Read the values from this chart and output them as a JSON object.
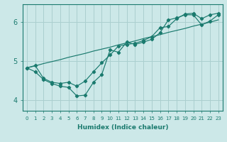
{
  "xlabel": "Humidex (Indice chaleur)",
  "bg_color": "#cce8e8",
  "line_color": "#1a7a6e",
  "grid_color": "#aacfcf",
  "xlim": [
    -0.5,
    23.5
  ],
  "ylim": [
    3.72,
    6.45
  ],
  "yticks": [
    4,
    5,
    6
  ],
  "xtick_labels": [
    "0",
    "1",
    "2",
    "3",
    "4",
    "5",
    "6",
    "7",
    "8",
    "9",
    "10",
    "11",
    "12",
    "13",
    "14",
    "15",
    "16",
    "17",
    "18",
    "19",
    "20",
    "21",
    "22",
    "23"
  ],
  "series_jagged": [
    4.82,
    4.72,
    4.52,
    4.42,
    4.35,
    4.32,
    4.1,
    4.12,
    4.45,
    4.65,
    5.28,
    5.22,
    5.48,
    5.42,
    5.48,
    5.55,
    5.72,
    6.05,
    6.1,
    6.18,
    6.18,
    5.92,
    6.02,
    6.18
  ],
  "series_smooth": [
    4.82,
    4.88,
    4.55,
    4.45,
    4.42,
    4.45,
    4.35,
    4.48,
    4.72,
    4.95,
    5.15,
    5.38,
    5.42,
    5.45,
    5.52,
    5.62,
    5.85,
    5.88,
    6.08,
    6.2,
    6.22,
    6.08,
    6.18,
    6.22
  ],
  "series_linear": [
    4.82,
    4.87,
    4.93,
    4.98,
    5.03,
    5.09,
    5.14,
    5.19,
    5.25,
    5.3,
    5.35,
    5.41,
    5.46,
    5.51,
    5.57,
    5.62,
    5.67,
    5.73,
    5.78,
    5.83,
    5.89,
    5.94,
    5.99,
    6.05
  ]
}
